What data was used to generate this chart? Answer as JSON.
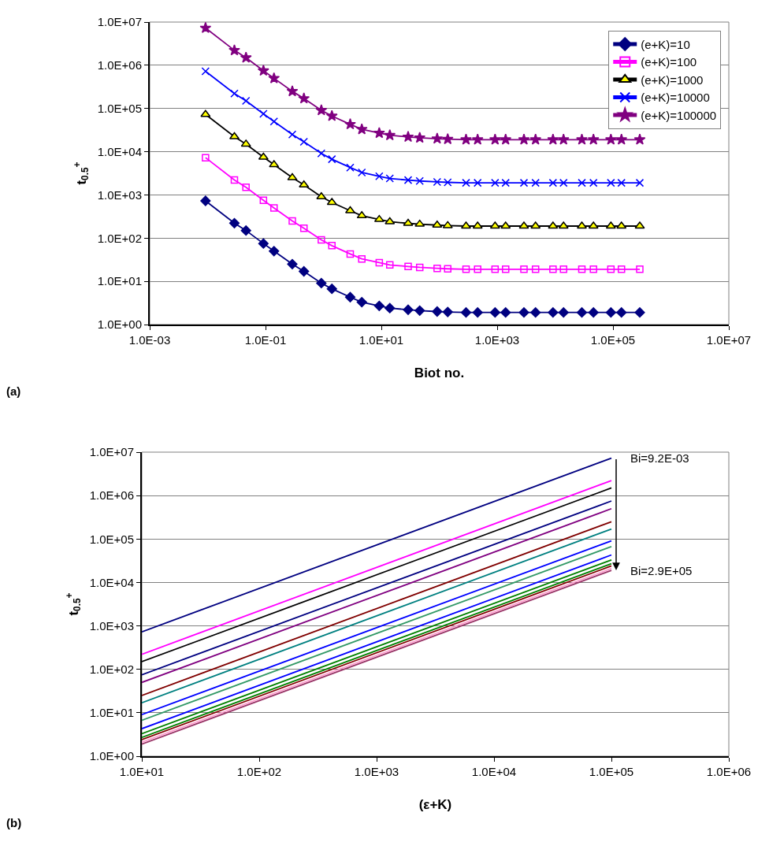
{
  "chart_data": [
    {
      "type": "line",
      "xlabel": "Biot no.",
      "ylabel": "t$_{0.5}$$^{+}$",
      "annotations": [
        "(a)"
      ],
      "x": [
        0.0092,
        0.029,
        0.046,
        0.092,
        0.14,
        0.29,
        0.46,
        0.92,
        1.4,
        2.9,
        4.6,
        9.2,
        14,
        29,
        46,
        92,
        140,
        290,
        460,
        920,
        1400,
        2900,
        4600,
        9200,
        14000,
        29000,
        46000,
        92000,
        140000,
        290000
      ],
      "series": [
        {
          "name": "(e+K)=10",
          "color": "#000080",
          "marker": "diamond",
          "values": [
            728,
            222,
            150,
            75,
            50,
            25,
            17,
            9.1,
            6.7,
            4.3,
            3.3,
            2.7,
            2.4,
            2.2,
            2.1,
            2.0,
            1.95,
            1.9,
            1.9,
            1.9,
            1.9,
            1.9,
            1.9,
            1.9,
            1.9,
            1.9,
            1.9,
            1.9,
            1.9,
            1.9
          ]
        },
        {
          "name": "(e+K)=100",
          "color": "#FF00FF",
          "marker": "square",
          "values": [
            7280,
            2220,
            1500,
            750,
            500,
            250,
            170,
            91,
            67,
            43,
            33,
            27,
            24,
            22,
            21,
            20,
            19.5,
            19,
            19,
            19,
            19,
            19,
            19,
            19,
            19,
            19,
            19,
            19,
            19,
            19
          ]
        },
        {
          "name": "(e+K)=1000",
          "color": "#000000",
          "marker": "triangle",
          "values": [
            72800,
            22200,
            15000,
            7500,
            5000,
            2500,
            1700,
            910,
            670,
            430,
            330,
            270,
            240,
            220,
            210,
            200,
            195,
            190,
            190,
            190,
            190,
            190,
            190,
            190,
            190,
            190,
            190,
            190,
            190,
            190
          ]
        },
        {
          "name": "(e+K)=10000",
          "color": "#0000FF",
          "marker": "cross",
          "values": [
            728000,
            222000,
            150000,
            75000,
            50000,
            25000,
            17000,
            9100,
            6700,
            4300,
            3300,
            2700,
            2400,
            2200,
            2100,
            2000,
            1950,
            1900,
            1900,
            1900,
            1900,
            1900,
            1900,
            1900,
            1900,
            1900,
            1900,
            1900,
            1900,
            1900
          ]
        },
        {
          "name": "(e+K)=100000",
          "color": "#800080",
          "marker": "star",
          "values": [
            7280000,
            2220000,
            1500000,
            750000,
            500000,
            250000,
            170000,
            91000,
            67000,
            43000,
            33000,
            27000,
            24000,
            22000,
            21000,
            20000,
            19500,
            19000,
            19000,
            19000,
            19000,
            19000,
            19000,
            19000,
            19000,
            19000,
            19000,
            19000,
            19000,
            19000
          ]
        }
      ],
      "log": "xy",
      "grid": "y",
      "legend": "top right",
      "xlim": [
        0.001,
        10000000
      ],
      "xticks": [
        {
          "value": 0.001,
          "label": "1.0E-03"
        },
        {
          "value": 0.1,
          "label": "1.0E-01"
        },
        {
          "value": 10,
          "label": "1.0E+01"
        },
        {
          "value": 1000,
          "label": "1.0E+03"
        },
        {
          "value": 100000,
          "label": "1.0E+05"
        },
        {
          "value": 10000000,
          "label": "1.0E+07"
        }
      ],
      "ylim": [
        1,
        10000000
      ],
      "yticks": [
        {
          "value": 1,
          "label": "1.0E+00"
        },
        {
          "value": 10,
          "label": "1.0E+01"
        },
        {
          "value": 100,
          "label": "1.0E+02"
        },
        {
          "value": 1000,
          "label": "1.0E+03"
        },
        {
          "value": 10000,
          "label": "1.0E+04"
        },
        {
          "value": 100000,
          "label": "1.0E+05"
        },
        {
          "value": 1000000,
          "label": "1.0E+06"
        },
        {
          "value": 10000000,
          "label": "1.0E+07"
        }
      ]
    },
    {
      "type": "line",
      "xlabel": "(ε+K)",
      "ylabel": "t$_{0.5}$$^{+}$",
      "annotations": [
        "(b)",
        {
          "text": "Bi=9.2E-03",
          "x": 100000,
          "y": 7280000
        },
        {
          "text": "Bi=2.9E+05",
          "x": 100000,
          "y": 19000
        }
      ],
      "x": [
        10,
        100000
      ],
      "series": [
        {
          "color": "#000080",
          "values": [
            728,
            7280000
          ]
        },
        {
          "color": "#FF00FF",
          "values": [
            222,
            2220000
          ]
        },
        {
          "color": "#000000",
          "values": [
            150,
            1500000
          ]
        },
        {
          "color": "#000080",
          "values": [
            75,
            750000
          ]
        },
        {
          "color": "#800080",
          "values": [
            50,
            500000
          ]
        },
        {
          "color": "#800000",
          "values": [
            25,
            250000
          ]
        },
        {
          "color": "#008080",
          "values": [
            17,
            170000
          ]
        },
        {
          "color": "#0000FF",
          "values": [
            9.1,
            91000
          ]
        },
        {
          "color": "#339966",
          "values": [
            6.7,
            67000
          ]
        },
        {
          "color": "#0000FF",
          "values": [
            4.3,
            43000
          ]
        },
        {
          "color": "#008000",
          "values": [
            3.3,
            33000
          ]
        },
        {
          "color": "#008000",
          "values": [
            2.7,
            27000
          ]
        },
        {
          "color": "#800000",
          "values": [
            2.4,
            24000
          ]
        },
        {
          "color": "#FF99CC",
          "values": [
            2.1,
            21000
          ]
        },
        {
          "color": "#993366",
          "values": [
            1.9,
            19000
          ]
        }
      ],
      "log": "xy",
      "grid": "y",
      "xlim": [
        10,
        1000000
      ],
      "xticks": [
        {
          "value": 10,
          "label": "1.0E+01"
        },
        {
          "value": 100,
          "label": "1.0E+02"
        },
        {
          "value": 1000,
          "label": "1.0E+03"
        },
        {
          "value": 10000,
          "label": "1.0E+04"
        },
        {
          "value": 100000,
          "label": "1.0E+05"
        },
        {
          "value": 1000000,
          "label": "1.0E+06"
        }
      ],
      "ylim": [
        1,
        10000000
      ],
      "yticks": [
        {
          "value": 1,
          "label": "1.0E+00"
        },
        {
          "value": 10,
          "label": "1.0E+01"
        },
        {
          "value": 100,
          "label": "1.0E+02"
        },
        {
          "value": 1000,
          "label": "1.0E+03"
        },
        {
          "value": 10000,
          "label": "1.0E+04"
        },
        {
          "value": 100000,
          "label": "1.0E+05"
        },
        {
          "value": 1000000,
          "label": "1.0E+06"
        },
        {
          "value": 10000000,
          "label": "1.0E+07"
        }
      ]
    }
  ]
}
